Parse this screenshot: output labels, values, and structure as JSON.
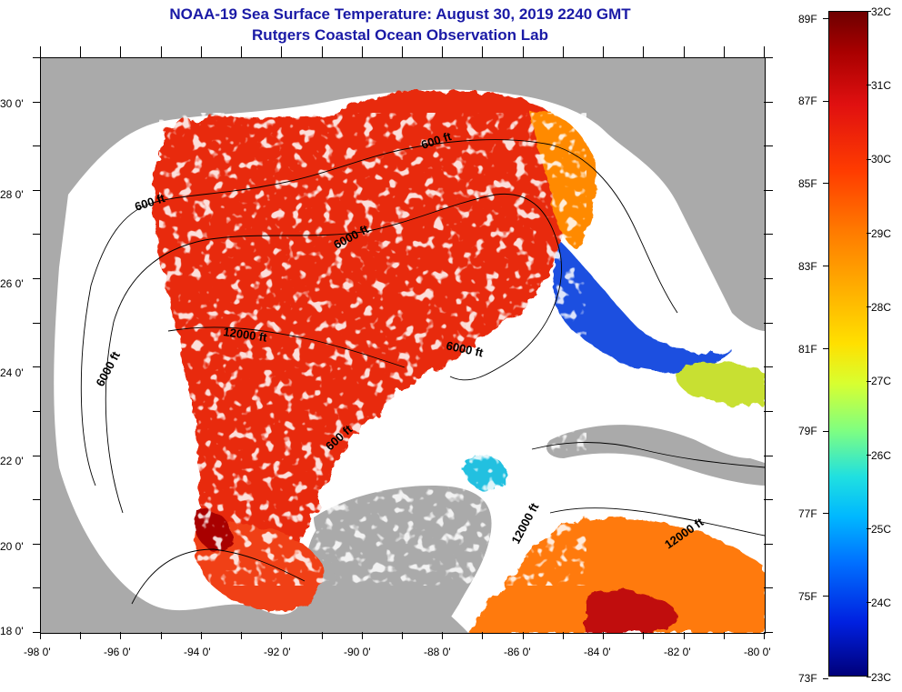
{
  "title": "NOAA-19 Sea Surface Temperature:  August 30, 2019 2240 GMT",
  "subtitle": "Rutgers Coastal Ocean Observation Lab",
  "map": {
    "lat_labels": [
      "30 0'",
      "28 0'",
      "26 0'",
      "24 0'",
      "22 0'",
      "20 0'",
      "18 0'"
    ],
    "lon_labels": [
      "-98 0'",
      "-96 0'",
      "-94 0'",
      "-92 0'",
      "-90 0'",
      "-88 0'",
      "-86 0'",
      "-84 0'",
      "-82 0'",
      "-80 0'"
    ],
    "lat_range": [
      18,
      31
    ],
    "lon_range": [
      -98,
      -80
    ],
    "contour_labels": [
      "600 ft",
      "600 ft",
      "6000 ft",
      "12000 ft",
      "6000 ft",
      "6000 ft",
      "600 ft",
      "12000 ft",
      "12000 ft"
    ],
    "colors": {
      "land": "#aaaaaa",
      "cloud": "#ffffff",
      "warm": "#e82a10",
      "hot": "#a80000"
    }
  },
  "colorbar": {
    "fahrenheit_labels": [
      "89F",
      "87F",
      "85F",
      "83F",
      "81F",
      "79F",
      "77F",
      "75F",
      "73F"
    ],
    "celsius_labels": [
      "32C",
      "31C",
      "30C",
      "29C",
      "28C",
      "27C",
      "26C",
      "25C",
      "24C",
      "23C"
    ]
  }
}
